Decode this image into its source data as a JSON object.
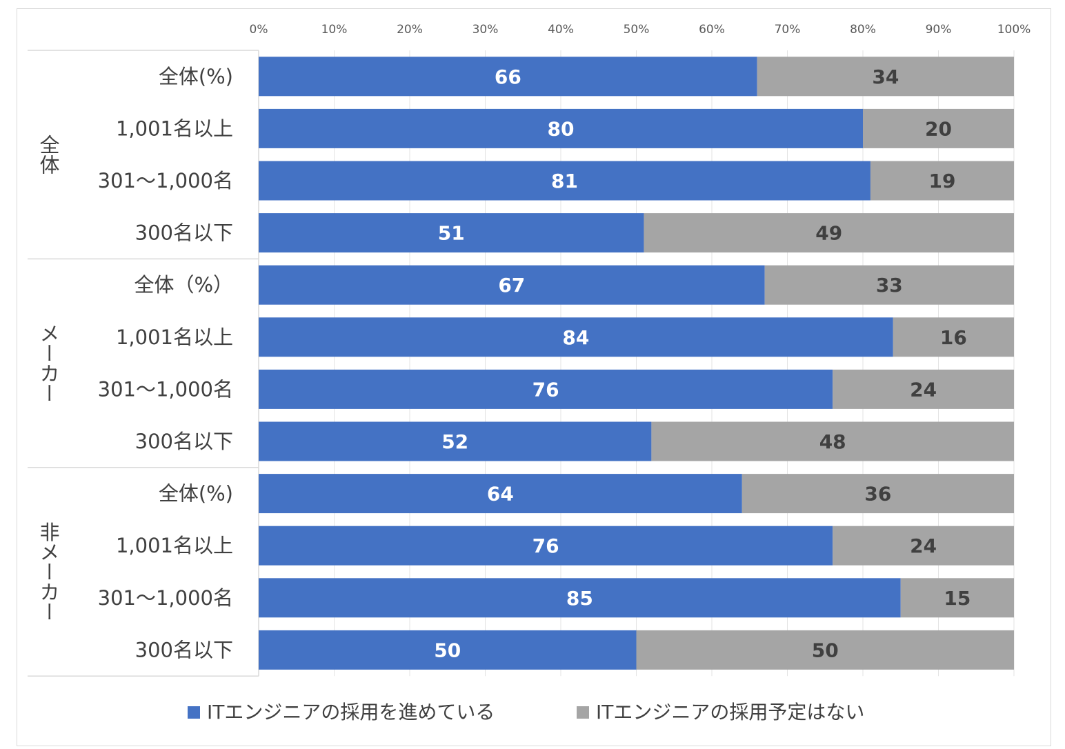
{
  "chart_data": {
    "type": "bar",
    "orientation": "horizontal",
    "stacked": "100%",
    "title": "",
    "xlabel": "",
    "ylabel": "",
    "xlim": [
      0,
      100
    ],
    "x_ticks": [
      "0%",
      "10%",
      "20%",
      "30%",
      "40%",
      "50%",
      "60%",
      "70%",
      "80%",
      "90%",
      "100%"
    ],
    "grid": true,
    "legend_position": "bottom",
    "groups": [
      {
        "name": "全体",
        "categories": [
          "全体(%)",
          "1,001名以上",
          "301～1,000名",
          "300名以下"
        ]
      },
      {
        "name": "メーカー",
        "categories": [
          "全体（%）",
          "1,001名以上",
          "301～1,000名",
          "300名以下"
        ]
      },
      {
        "name": "非メーカー",
        "categories": [
          "全体(%)",
          "1,001名以上",
          "301～1,000名",
          "300名以下"
        ]
      }
    ],
    "series": [
      {
        "name": "ITエンジニアの採用を進めている",
        "color": "#4472c4",
        "label_color": "#ffffff",
        "values": [
          66,
          80,
          81,
          51,
          67,
          84,
          76,
          52,
          64,
          76,
          85,
          50
        ]
      },
      {
        "name": "ITエンジニアの採用予定はない",
        "color": "#a5a5a5",
        "label_color": "#404040",
        "values": [
          34,
          20,
          19,
          49,
          33,
          16,
          24,
          48,
          36,
          24,
          15,
          50
        ]
      }
    ]
  }
}
